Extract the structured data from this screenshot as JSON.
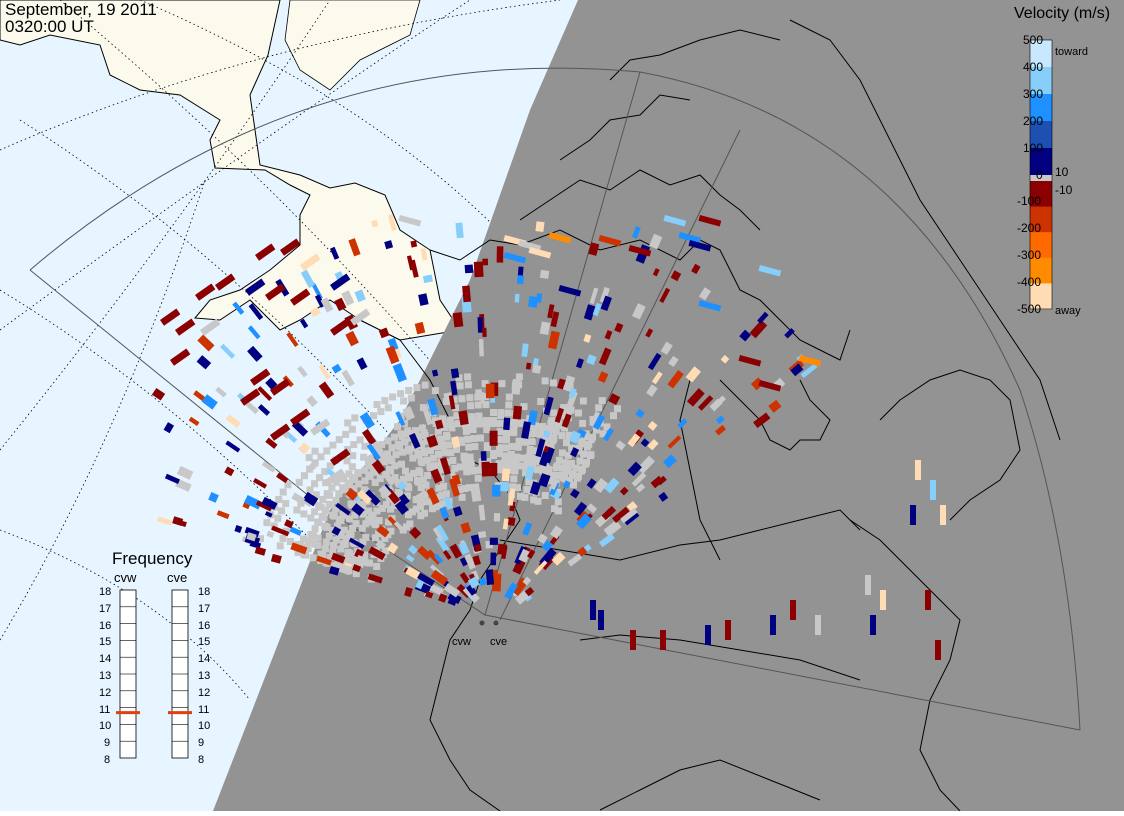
{
  "header": {
    "date": "September, 19 2011",
    "time": "0320:00 UT"
  },
  "colorbar": {
    "title": "Velocity (m/s)",
    "ticks": [
      "500",
      "400",
      "300",
      "200",
      "100",
      "0",
      "-100",
      "-200",
      "-300",
      "-400",
      "-500"
    ],
    "inner_ticks": [
      "10",
      "-10"
    ],
    "toward_label": "toward",
    "away_label": "away",
    "colors": [
      "#ffdcb4",
      "#ff8c00",
      "#cc3300",
      "#8b0000",
      "#000080",
      "#1e50b4",
      "#1e90ff",
      "#87cefa",
      "#c8e8ff"
    ]
  },
  "frequency_panel": {
    "title": "Frequency",
    "radars": [
      {
        "name": "cvw",
        "selected_mhz": 10.7
      },
      {
        "name": "cve",
        "selected_mhz": 10.7
      }
    ],
    "ticks": [
      "18",
      "17",
      "16",
      "15",
      "14",
      "13",
      "12",
      "11",
      "10",
      "9",
      "8"
    ]
  },
  "sites": {
    "west": "cvw",
    "east": "cve"
  },
  "colors": {
    "ocean": "#e6f5ff",
    "land": "#fcfaec",
    "night": "#939393",
    "groundscatter": "#c8c8c8",
    "marker": "#e04010"
  }
}
